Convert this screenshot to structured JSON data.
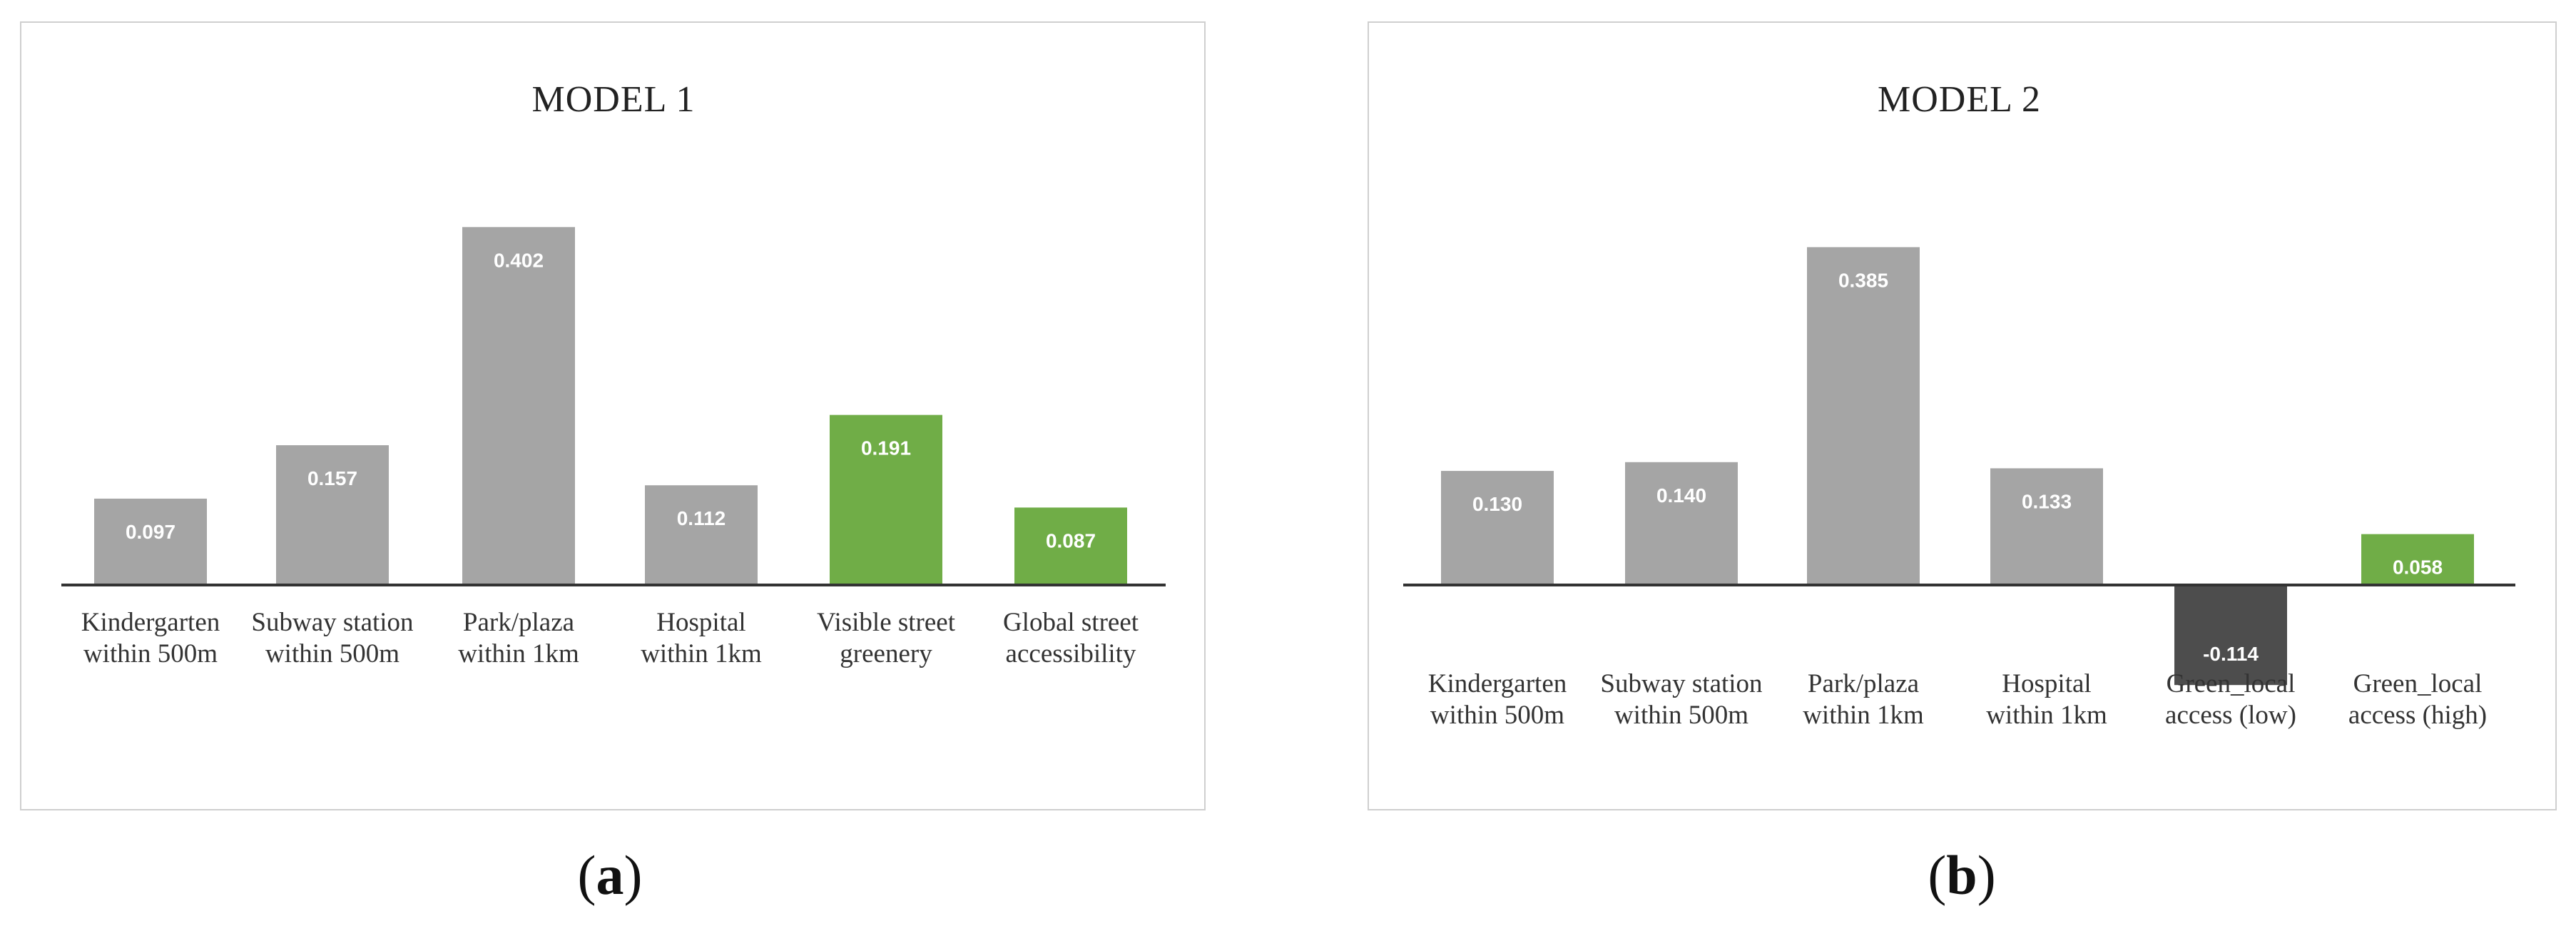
{
  "colors": {
    "neutral": "#a5a5a5",
    "green": "#70ad47",
    "negative": "#4d4d4d",
    "axis": "#333333"
  },
  "captions": {
    "a_letter": "a",
    "b_letter": "b",
    "open": "(",
    "close": ")"
  },
  "chart_data": [
    {
      "type": "bar",
      "title": "MODEL 1",
      "categories": [
        [
          "Kindergarten",
          "within 500m"
        ],
        [
          "Subway station",
          "within 500m"
        ],
        [
          "Park/plaza",
          "within 1km"
        ],
        [
          "Hospital",
          "within 1km"
        ],
        [
          "Visible street",
          "greenery"
        ],
        [
          "Global street",
          "accessibility"
        ]
      ],
      "values": [
        0.097,
        0.157,
        0.402,
        0.112,
        0.191,
        0.087
      ],
      "value_labels": [
        "0.097",
        "0.157",
        "0.402",
        "0.112",
        "0.191",
        "0.087"
      ],
      "bar_colors": [
        "neutral",
        "neutral",
        "neutral",
        "neutral",
        "green",
        "green"
      ],
      "ylim": [
        0,
        0.402
      ],
      "grid": false,
      "legend": "none"
    },
    {
      "type": "bar",
      "title": "MODEL 2",
      "categories": [
        [
          "Kindergarten",
          "within 500m"
        ],
        [
          "Subway station",
          "within 500m"
        ],
        [
          "Park/plaza",
          "within 1km"
        ],
        [
          "Hospital",
          "within 1km"
        ],
        [
          "Green_local",
          "access (low)"
        ],
        [
          "Green_local",
          "access (high)"
        ]
      ],
      "values": [
        0.13,
        0.14,
        0.385,
        0.133,
        -0.114,
        0.058
      ],
      "value_labels": [
        "0.130",
        "0.140",
        "0.385",
        "0.133",
        "-0.114",
        "0.058"
      ],
      "bar_colors": [
        "neutral",
        "neutral",
        "neutral",
        "neutral",
        "negative",
        "green"
      ],
      "ylim": [
        -0.114,
        0.385
      ],
      "grid": false,
      "legend": "none"
    }
  ]
}
